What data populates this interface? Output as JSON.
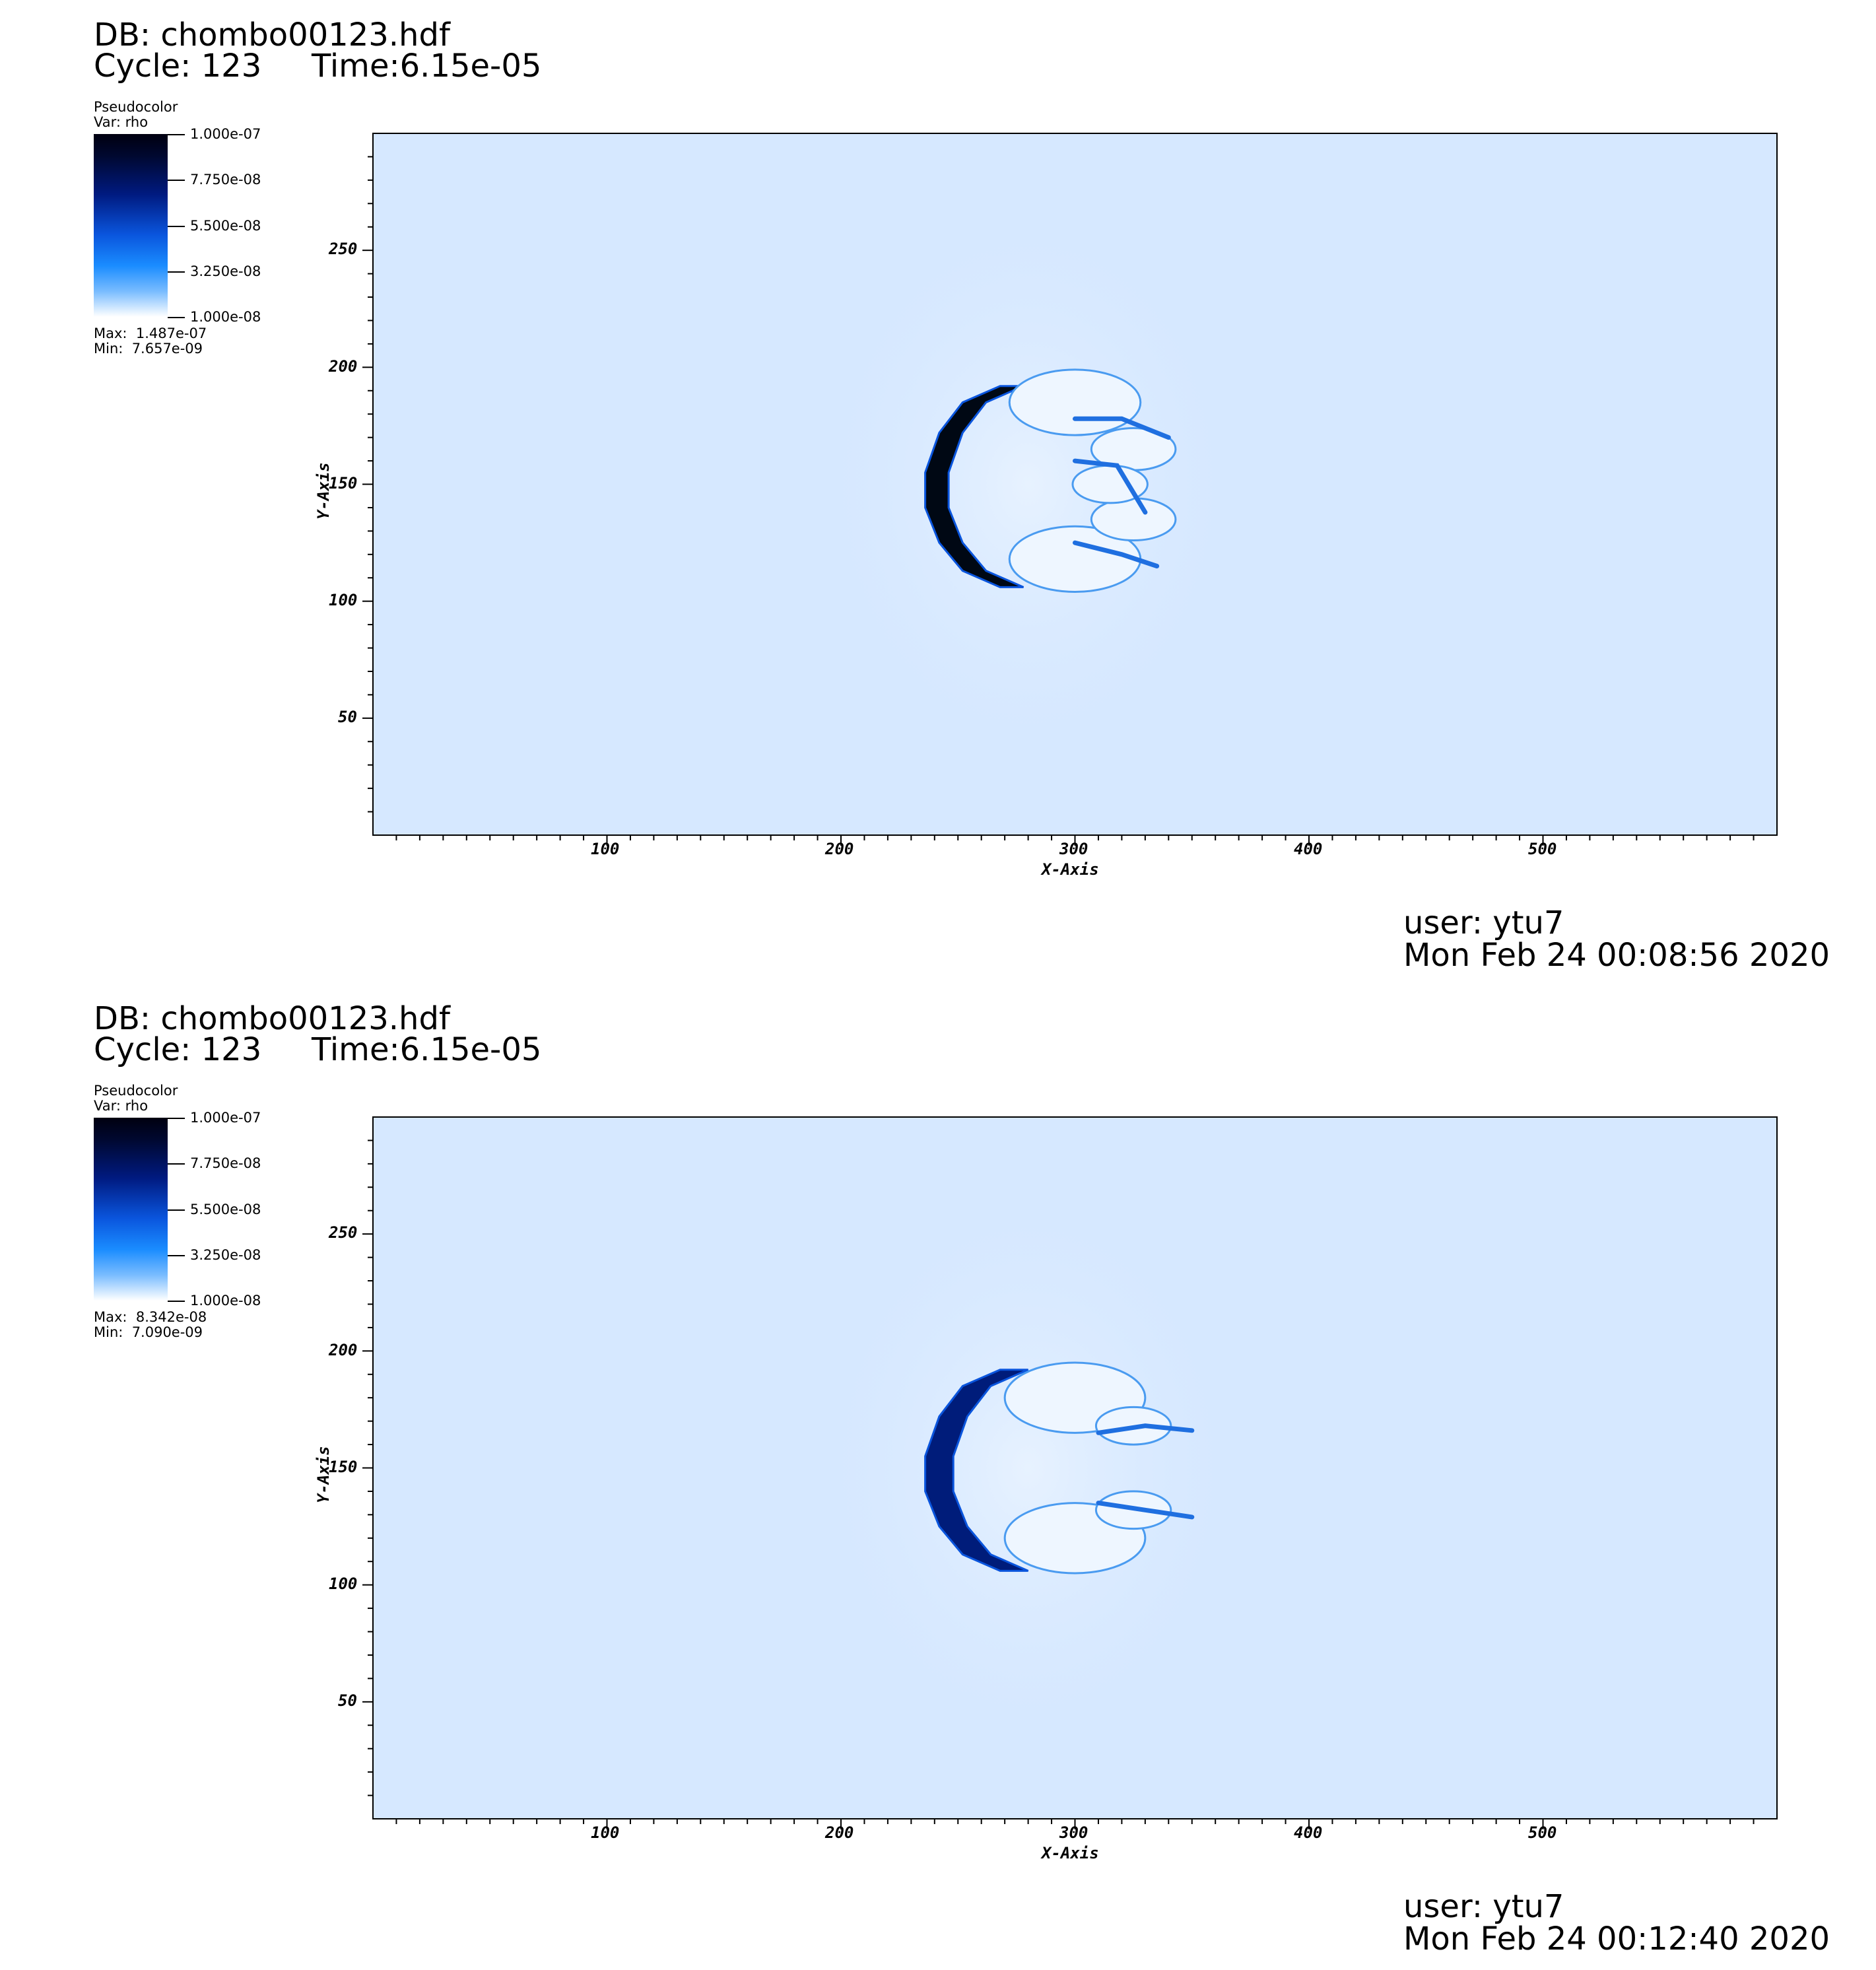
{
  "panels": [
    {
      "db_label": "DB: chombo00123.hdf",
      "cycle_label": "Cycle: 123",
      "time_label": "Time:6.15e-05",
      "plot_type": "Pseudocolor",
      "var_label": "Var: rho",
      "colorbar_ticks": [
        "1.000e-07",
        "7.750e-08",
        "5.500e-08",
        "3.250e-08",
        "1.000e-08"
      ],
      "max_label": "Max:  1.487e-07",
      "min_label": "Min:  7.657e-09",
      "user_label": "user: ytu7",
      "date_label": "Mon Feb 24 00:08:56 2020"
    },
    {
      "db_label": "DB: chombo00123.hdf",
      "cycle_label": "Cycle: 123",
      "time_label": "Time:6.15e-05",
      "plot_type": "Pseudocolor",
      "var_label": "Var: rho",
      "colorbar_ticks": [
        "1.000e-07",
        "7.750e-08",
        "5.500e-08",
        "3.250e-08",
        "1.000e-08"
      ],
      "max_label": "Max:  8.342e-08",
      "min_label": "Min:  7.090e-09",
      "user_label": "user: ytu7",
      "date_label": "Mon Feb 24 00:12:40 2020"
    }
  ],
  "chart_data": [
    {
      "type": "heatmap",
      "variable": "rho",
      "colormap": [
        "#ffffff",
        "#1a8cff",
        "#0a55dd",
        "#001a80",
        "#000010"
      ],
      "color_range": [
        1e-08,
        1e-07
      ],
      "xlabel": "X-Axis",
      "ylabel": "Y-Axis",
      "xlim": [
        0,
        600
      ],
      "ylim": [
        0,
        300
      ],
      "xticks": [
        "100",
        "200",
        "300",
        "400",
        "500"
      ],
      "yticks": [
        "50",
        "100",
        "150",
        "200",
        "250"
      ],
      "data_max": 1.487e-07,
      "data_min": 7.657e-09
    },
    {
      "type": "heatmap",
      "variable": "rho",
      "colormap": [
        "#ffffff",
        "#1a8cff",
        "#0a55dd",
        "#001a80",
        "#000010"
      ],
      "color_range": [
        1e-08,
        1e-07
      ],
      "xlabel": "X-Axis",
      "ylabel": "Y-Axis",
      "xlim": [
        0,
        600
      ],
      "ylim": [
        0,
        300
      ],
      "xticks": [
        "100",
        "200",
        "300",
        "400",
        "500"
      ],
      "yticks": [
        "50",
        "100",
        "150",
        "200",
        "250"
      ],
      "data_max": 8.342e-08,
      "data_min": 7.09e-09
    }
  ]
}
